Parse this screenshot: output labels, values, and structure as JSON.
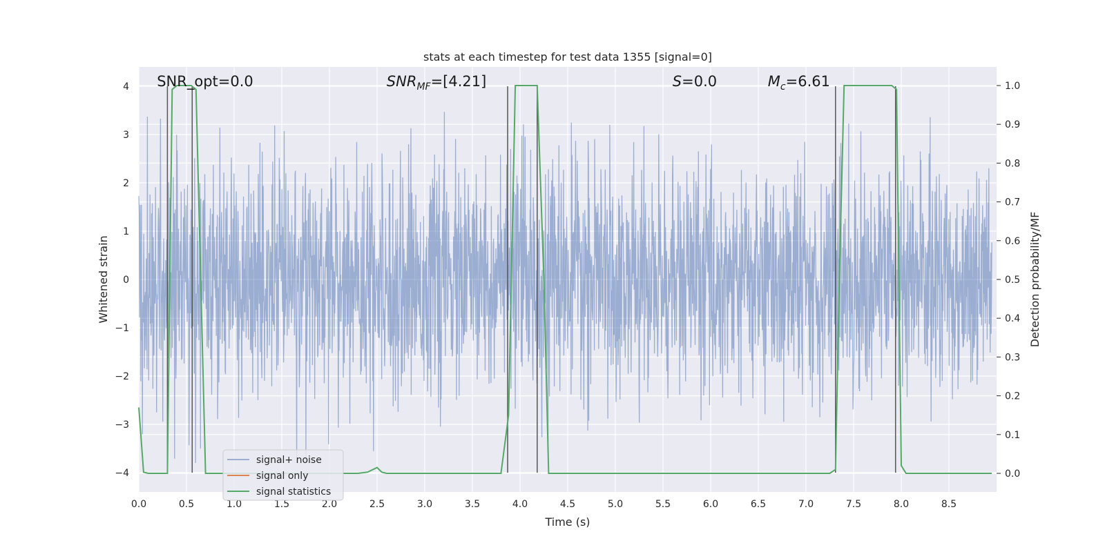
{
  "chart_data": {
    "type": "line",
    "title": "stats at each timestep for test data 1355 [signal=0]",
    "xlabel": "Time (s)",
    "ylabel": "Whitened strain",
    "y2label": "Detection probability/MF",
    "xlim": [
      0,
      9.0
    ],
    "ylim": [
      -4.4,
      4.4
    ],
    "y2lim": [
      -0.048,
      1.048
    ],
    "xticks": [
      0.0,
      0.5,
      1.0,
      1.5,
      2.0,
      2.5,
      3.0,
      3.5,
      4.0,
      4.5,
      5.0,
      5.5,
      6.0,
      6.5,
      7.0,
      7.5,
      8.0,
      8.5
    ],
    "xtick_labels": [
      "0.0",
      "0.5",
      "1.0",
      "1.5",
      "2.0",
      "2.5",
      "3.0",
      "3.5",
      "4.0",
      "4.5",
      "5.0",
      "5.5",
      "6.0",
      "6.5",
      "7.0",
      "7.5",
      "8.0",
      "8.5"
    ],
    "yticks": [
      -4,
      -3,
      -2,
      -1,
      0,
      1,
      2,
      3,
      4
    ],
    "ytick_labels": [
      "−4",
      "−3",
      "−2",
      "−1",
      "0",
      "1",
      "2",
      "3",
      "4"
    ],
    "y2ticks": [
      0.0,
      0.1,
      0.2,
      0.3,
      0.4,
      0.5,
      0.6,
      0.7,
      0.8,
      0.9,
      1.0
    ],
    "y2tick_labels": [
      "0.0",
      "0.1",
      "0.2",
      "0.3",
      "0.4",
      "0.5",
      "0.6",
      "0.7",
      "0.8",
      "0.9",
      "1.0"
    ],
    "grid": true,
    "legend_position": "lower-left",
    "annotations": [
      {
        "text": "SNR_opt=0.0",
        "x": 0.19,
        "y": 4.1
      },
      {
        "text": "SNR_MF=[4.21]",
        "x": 2.6,
        "y": 4.1
      },
      {
        "text": "S=0.0",
        "x": 5.6,
        "y": 4.1
      },
      {
        "text": "M_c=6.61",
        "x": 6.6,
        "y": 4.1
      }
    ],
    "vlines": [
      0.3,
      0.56,
      3.87,
      4.18,
      7.31,
      7.94
    ],
    "series": [
      {
        "name": "signal+ noise",
        "color": "#4c72b0",
        "alpha": 0.5,
        "kind": "noise",
        "amplitude_std": 1.0,
        "range": [
          -3.8,
          4.0
        ]
      },
      {
        "name": "signal only",
        "color": "#dd8452",
        "values": []
      },
      {
        "name": "signal statistics",
        "color": "#55a868",
        "axis": "y2",
        "x": [
          0.0,
          0.05,
          0.1,
          0.2,
          0.3,
          0.35,
          0.4,
          0.55,
          0.6,
          0.7,
          0.8,
          1.0,
          2.0,
          2.3,
          2.4,
          2.5,
          2.55,
          2.6,
          3.0,
          3.5,
          3.8,
          3.88,
          3.95,
          4.0,
          4.18,
          4.25,
          4.3,
          4.4,
          5.0,
          6.0,
          7.0,
          7.25,
          7.31,
          7.35,
          7.4,
          7.5,
          7.9,
          7.95,
          8.0,
          8.05,
          8.1,
          8.5,
          8.95
        ],
        "y": [
          0.17,
          0.003,
          0.0,
          0.0,
          0.0,
          0.99,
          1.0,
          1.0,
          0.99,
          0.0,
          0.0,
          0.0,
          0.0,
          0.0,
          0.003,
          0.015,
          0.003,
          0.0,
          0.0,
          0.0,
          0.0,
          0.15,
          1.0,
          1.0,
          1.0,
          0.5,
          0.0,
          0.0,
          0.0,
          0.0,
          0.0,
          0.0,
          0.01,
          0.5,
          1.0,
          1.0,
          1.0,
          0.99,
          0.02,
          0.0,
          0.0,
          0.0,
          0.0
        ]
      }
    ]
  }
}
